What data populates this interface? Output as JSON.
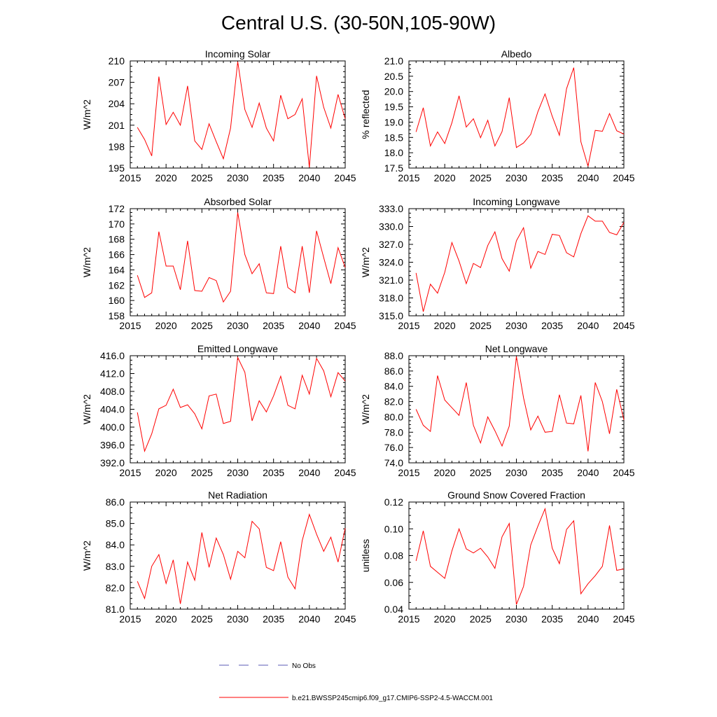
{
  "figure": {
    "title": "Central U.S. (30-50N,105-90W)",
    "legend": {
      "entries": [
        {
          "label": "No Obs",
          "color": "#5a5ab4",
          "dash": true
        },
        {
          "label": "b.e21.BWSSP245cmip6.f09_g17.CMIP6-SSP2-4.5-WACCM.001",
          "color": "#ff0000",
          "dash": false
        }
      ]
    },
    "series_color": "#ff0000"
  },
  "chart_data": [
    {
      "type": "line",
      "title": "Incoming Solar",
      "xlabel": "",
      "ylabel": "W/m^2",
      "xlim": [
        2015,
        2045
      ],
      "ylim": [
        195,
        210
      ],
      "xticks": [
        2015,
        2020,
        2025,
        2030,
        2035,
        2040,
        2045
      ],
      "yticks": [
        195,
        198,
        201,
        204,
        207,
        210
      ],
      "ytick_labels": [
        "195",
        "198",
        "201",
        "204",
        "207",
        "210"
      ],
      "x": [
        2016,
        2017,
        2018,
        2019,
        2020,
        2021,
        2022,
        2023,
        2024,
        2025,
        2026,
        2027,
        2028,
        2029,
        2030,
        2031,
        2032,
        2033,
        2034,
        2035,
        2036,
        2037,
        2038,
        2039,
        2040,
        2041,
        2042,
        2043,
        2044,
        2045
      ],
      "values": [
        200.7,
        199.0,
        196.7,
        207.8,
        201.1,
        202.8,
        201.0,
        206.5,
        198.8,
        197.6,
        201.2,
        198.7,
        196.3,
        200.6,
        209.9,
        203.2,
        200.7,
        204.1,
        200.6,
        198.8,
        205.2,
        201.9,
        202.5,
        204.7,
        195.1,
        207.9,
        203.5,
        200.6,
        205.3,
        201.9
      ]
    },
    {
      "type": "line",
      "title": "Albedo",
      "xlabel": "",
      "ylabel": "% reflected",
      "xlim": [
        2015,
        2045
      ],
      "ylim": [
        17.5,
        21.0
      ],
      "xticks": [
        2015,
        2020,
        2025,
        2030,
        2035,
        2040,
        2045
      ],
      "yticks": [
        17.5,
        18.0,
        18.5,
        19.0,
        19.5,
        20.0,
        20.5,
        21.0
      ],
      "ytick_labels": [
        "17.5",
        "18.0",
        "18.5",
        "19.0",
        "19.5",
        "20.0",
        "20.5",
        "21.0"
      ],
      "x": [
        2016,
        2017,
        2018,
        2019,
        2020,
        2021,
        2022,
        2023,
        2024,
        2025,
        2026,
        2027,
        2028,
        2029,
        2030,
        2031,
        2032,
        2033,
        2034,
        2035,
        2036,
        2037,
        2038,
        2039,
        2040,
        2041,
        2042,
        2043,
        2044,
        2045
      ],
      "values": [
        18.68,
        19.47,
        18.22,
        18.68,
        18.3,
        18.98,
        19.86,
        18.84,
        19.11,
        18.49,
        19.06,
        18.22,
        18.69,
        19.8,
        18.17,
        18.32,
        18.6,
        19.34,
        19.92,
        19.19,
        18.57,
        20.09,
        20.78,
        18.36,
        17.56,
        18.73,
        18.7,
        19.28,
        18.72,
        18.61
      ]
    },
    {
      "type": "line",
      "title": "Absorbed Solar",
      "xlabel": "",
      "ylabel": "W/m^2",
      "xlim": [
        2015,
        2045
      ],
      "ylim": [
        158,
        172
      ],
      "xticks": [
        2015,
        2020,
        2025,
        2030,
        2035,
        2040,
        2045
      ],
      "yticks": [
        158,
        160,
        162,
        164,
        166,
        168,
        170,
        172
      ],
      "ytick_labels": [
        "158",
        "160",
        "162",
        "164",
        "166",
        "168",
        "170",
        "172"
      ],
      "x": [
        2016,
        2017,
        2018,
        2019,
        2020,
        2021,
        2022,
        2023,
        2024,
        2025,
        2026,
        2027,
        2028,
        2029,
        2030,
        2031,
        2032,
        2033,
        2034,
        2035,
        2036,
        2037,
        2038,
        2039,
        2040,
        2041,
        2042,
        2043,
        2044,
        2045
      ],
      "values": [
        163.3,
        160.4,
        161.0,
        169.0,
        164.5,
        164.5,
        161.4,
        167.8,
        161.3,
        161.2,
        163.0,
        162.6,
        159.8,
        161.2,
        171.5,
        166.0,
        163.5,
        164.8,
        161.0,
        160.9,
        167.1,
        161.7,
        161.0,
        167.1,
        161.0,
        169.1,
        165.6,
        162.2,
        166.9,
        164.3
      ]
    },
    {
      "type": "line",
      "title": "Incoming Longwave",
      "xlabel": "",
      "ylabel": "W/m^2",
      "xlim": [
        2015,
        2045
      ],
      "ylim": [
        315,
        333
      ],
      "xticks": [
        2015,
        2020,
        2025,
        2030,
        2035,
        2040,
        2045
      ],
      "yticks": [
        315,
        318,
        321,
        324,
        327,
        330,
        333
      ],
      "ytick_labels": [
        "315.0",
        "318.0",
        "321.0",
        "324.0",
        "327.0",
        "330.0",
        "333.0"
      ],
      "x": [
        2016,
        2017,
        2018,
        2019,
        2020,
        2021,
        2022,
        2023,
        2024,
        2025,
        2026,
        2027,
        2028,
        2029,
        2030,
        2031,
        2032,
        2033,
        2034,
        2035,
        2036,
        2037,
        2038,
        2039,
        2040,
        2041,
        2042,
        2043,
        2044,
        2045
      ],
      "values": [
        322.2,
        315.7,
        320.3,
        318.8,
        322.3,
        327.3,
        324.2,
        320.4,
        323.8,
        323.1,
        326.8,
        329.1,
        324.6,
        322.5,
        327.6,
        329.8,
        323.0,
        325.8,
        325.3,
        328.7,
        328.5,
        325.6,
        324.9,
        328.8,
        331.8,
        330.9,
        330.9,
        329.0,
        328.6,
        330.7
      ]
    },
    {
      "type": "line",
      "title": "Emitted Longwave",
      "xlabel": "",
      "ylabel": "W/m^2",
      "xlim": [
        2015,
        2045
      ],
      "ylim": [
        392,
        416
      ],
      "xticks": [
        2015,
        2020,
        2025,
        2030,
        2035,
        2040,
        2045
      ],
      "yticks": [
        392,
        396,
        400,
        404,
        408,
        412,
        416
      ],
      "ytick_labels": [
        "392.0",
        "396.0",
        "400.0",
        "404.0",
        "408.0",
        "412.0",
        "416.0"
      ],
      "x": [
        2016,
        2017,
        2018,
        2019,
        2020,
        2021,
        2022,
        2023,
        2024,
        2025,
        2026,
        2027,
        2028,
        2029,
        2030,
        2031,
        2032,
        2033,
        2034,
        2035,
        2036,
        2037,
        2038,
        2039,
        2040,
        2041,
        2042,
        2043,
        2044,
        2045
      ],
      "values": [
        403.3,
        394.6,
        398.5,
        404.1,
        404.9,
        408.5,
        404.4,
        405.0,
        403.0,
        399.6,
        407.0,
        407.4,
        400.8,
        401.3,
        415.6,
        412.3,
        401.4,
        405.9,
        403.4,
        407.0,
        411.4,
        404.9,
        404.1,
        411.6,
        407.4,
        415.4,
        412.6,
        406.8,
        412.2,
        410.3
      ]
    },
    {
      "type": "line",
      "title": "Net Longwave",
      "xlabel": "",
      "ylabel": "W/m^2",
      "xlim": [
        2015,
        2045
      ],
      "ylim": [
        74,
        88
      ],
      "xticks": [
        2015,
        2020,
        2025,
        2030,
        2035,
        2040,
        2045
      ],
      "yticks": [
        74,
        76,
        78,
        80,
        82,
        84,
        86,
        88
      ],
      "ytick_labels": [
        "74.0",
        "76.0",
        "78.0",
        "80.0",
        "82.0",
        "84.0",
        "86.0",
        "88.0"
      ],
      "x": [
        2016,
        2017,
        2018,
        2019,
        2020,
        2021,
        2022,
        2023,
        2024,
        2025,
        2026,
        2027,
        2028,
        2029,
        2030,
        2031,
        2032,
        2033,
        2034,
        2035,
        2036,
        2037,
        2038,
        2039,
        2040,
        2041,
        2042,
        2043,
        2044,
        2045
      ],
      "values": [
        81.0,
        78.9,
        78.1,
        85.4,
        82.2,
        81.2,
        80.2,
        84.5,
        78.9,
        76.6,
        80.0,
        78.2,
        76.2,
        78.8,
        87.9,
        82.5,
        78.3,
        80.1,
        78.0,
        78.1,
        82.9,
        79.2,
        79.1,
        82.8,
        75.5,
        84.5,
        82.0,
        77.8,
        83.6,
        79.6
      ]
    },
    {
      "type": "line",
      "title": "Net Radiation",
      "xlabel": "",
      "ylabel": "W/m^2",
      "xlim": [
        2015,
        2045
      ],
      "ylim": [
        81,
        86
      ],
      "xticks": [
        2015,
        2020,
        2025,
        2030,
        2035,
        2040,
        2045
      ],
      "yticks": [
        81,
        82,
        83,
        84,
        85,
        86
      ],
      "ytick_labels": [
        "81.0",
        "82.0",
        "83.0",
        "84.0",
        "85.0",
        "86.0"
      ],
      "x": [
        2016,
        2017,
        2018,
        2019,
        2020,
        2021,
        2022,
        2023,
        2024,
        2025,
        2026,
        2027,
        2028,
        2029,
        2030,
        2031,
        2032,
        2033,
        2034,
        2035,
        2036,
        2037,
        2038,
        2039,
        2040,
        2041,
        2042,
        2043,
        2044,
        2045
      ],
      "values": [
        82.3,
        81.5,
        83.0,
        83.55,
        82.2,
        83.3,
        81.25,
        83.2,
        82.35,
        84.58,
        82.95,
        84.32,
        83.55,
        82.4,
        83.7,
        83.4,
        85.1,
        84.75,
        82.95,
        82.8,
        84.15,
        82.5,
        81.95,
        84.2,
        85.42,
        84.5,
        83.7,
        84.36,
        83.2,
        84.78
      ]
    },
    {
      "type": "line",
      "title": "Ground Snow Covered Fraction",
      "xlabel": "",
      "ylabel": "unitless",
      "xlim": [
        2015,
        2045
      ],
      "ylim": [
        0.04,
        0.12
      ],
      "xticks": [
        2015,
        2020,
        2025,
        2030,
        2035,
        2040,
        2045
      ],
      "yticks": [
        0.04,
        0.06,
        0.08,
        0.1,
        0.12
      ],
      "ytick_labels": [
        "0.04",
        "0.06",
        "0.08",
        "0.10",
        "0.12"
      ],
      "x": [
        2016,
        2017,
        2018,
        2019,
        2020,
        2021,
        2022,
        2023,
        2024,
        2025,
        2026,
        2027,
        2028,
        2029,
        2030,
        2031,
        2032,
        2033,
        2034,
        2035,
        2036,
        2037,
        2038,
        2039,
        2040,
        2041,
        2042,
        2043,
        2044,
        2045
      ],
      "values": [
        0.076,
        0.0985,
        0.072,
        0.0675,
        0.063,
        0.0835,
        0.1,
        0.085,
        0.082,
        0.0855,
        0.079,
        0.0705,
        0.094,
        0.104,
        0.0435,
        0.057,
        0.088,
        0.102,
        0.115,
        0.0855,
        0.074,
        0.0995,
        0.106,
        0.0515,
        0.059,
        0.065,
        0.072,
        0.1025,
        0.069,
        0.07
      ]
    }
  ]
}
